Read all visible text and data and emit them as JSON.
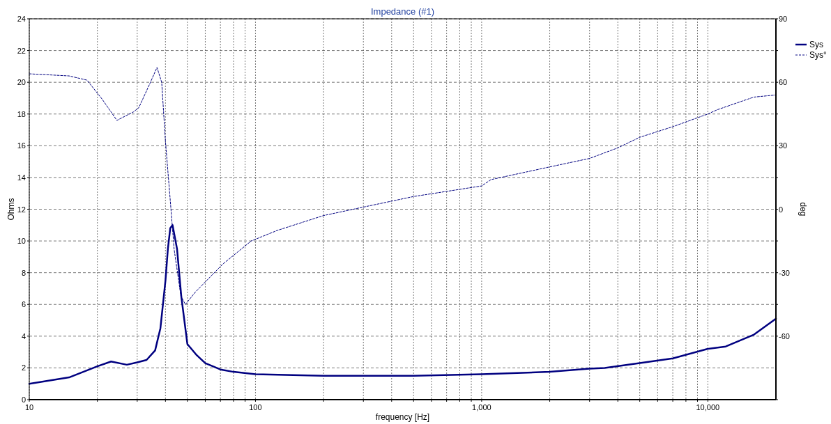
{
  "chart_data": {
    "type": "line",
    "title": "Impedance (#1)",
    "xlabel": "frequency [Hz]",
    "ylabel": "Ohms",
    "y2label": "deg",
    "log": "x",
    "grid": true,
    "legend": "top right",
    "xlim": [
      10,
      20000
    ],
    "xticks": [
      10,
      {
        "value": 20,
        "label": null
      },
      {
        "value": 30,
        "label": null
      },
      {
        "value": 40,
        "label": null
      },
      {
        "value": 50,
        "label": null
      },
      {
        "value": 60,
        "label": null
      },
      {
        "value": 70,
        "label": null
      },
      {
        "value": 80,
        "label": null
      },
      {
        "value": 90,
        "label": null
      },
      100,
      {
        "value": 200,
        "label": null
      },
      {
        "value": 300,
        "label": null
      },
      {
        "value": 400,
        "label": null
      },
      {
        "value": 500,
        "label": null
      },
      {
        "value": 600,
        "label": null
      },
      {
        "value": 700,
        "label": null
      },
      {
        "value": 800,
        "label": null
      },
      {
        "value": 900,
        "label": null
      },
      {
        "value": 1000,
        "label": "1,000"
      },
      {
        "value": 2000,
        "label": null
      },
      {
        "value": 3000,
        "label": null
      },
      {
        "value": 4000,
        "label": null
      },
      {
        "value": 5000,
        "label": null
      },
      {
        "value": 6000,
        "label": null
      },
      {
        "value": 7000,
        "label": null
      },
      {
        "value": 8000,
        "label": null
      },
      {
        "value": 9000,
        "label": null
      },
      {
        "value": 10000,
        "label": "10,000"
      }
    ],
    "ylim": [
      0,
      24
    ],
    "yticks": [
      0,
      2,
      4,
      6,
      8,
      10,
      12,
      14,
      16,
      18,
      20,
      22,
      24
    ],
    "y2lim": [
      -90,
      90
    ],
    "y2ticks": [
      {
        "value": -90,
        "label": null
      },
      -60,
      {
        "value": -45,
        "label": null
      },
      -30,
      {
        "value": -15,
        "label": null
      },
      0,
      {
        "value": 15,
        "label": null
      },
      30,
      {
        "value": 45,
        "label": null
      },
      60,
      {
        "value": 75,
        "label": null
      },
      90
    ],
    "series": [
      {
        "name": "Sys",
        "color": "#000080",
        "line_style": "solid",
        "x": [
          10,
          15,
          20,
          23,
          27,
          30,
          33,
          36,
          38,
          40,
          41,
          42,
          43,
          45,
          47,
          50,
          55,
          60,
          70,
          80,
          100,
          200,
          500,
          1000,
          2000,
          3000,
          3500,
          5000,
          7000,
          10000,
          12000,
          16000,
          20000
        ],
        "values": [
          1.0,
          1.4,
          2.1,
          2.4,
          2.2,
          2.35,
          2.5,
          3.1,
          4.5,
          7.5,
          9.5,
          10.8,
          11.0,
          9.5,
          6.5,
          3.5,
          2.8,
          2.3,
          1.9,
          1.75,
          1.6,
          1.5,
          1.5,
          1.6,
          1.75,
          1.95,
          2.0,
          2.3,
          2.6,
          3.2,
          3.35,
          4.1,
          5.1
        ]
      },
      {
        "name": "Sys°",
        "color": "#000080",
        "line_style": "dashed",
        "axis": "y2",
        "x": [
          10,
          15,
          18,
          21,
          24.4,
          28.9,
          30.5,
          34,
          36.7,
          38.5,
          40,
          41.8,
          43.7,
          46.8,
          49,
          54.4,
          71.6,
          95.8,
          125,
          200,
          300,
          500,
          1000,
          1100,
          2000,
          3000,
          4000,
          5000,
          7000,
          10000,
          11000,
          15000,
          16000,
          20000
        ],
        "values": [
          64,
          63,
          61,
          52,
          42,
          46,
          48,
          59,
          67,
          60,
          32,
          7,
          -19,
          -41,
          -45,
          -39,
          -26,
          -15,
          -10,
          -3,
          1,
          6,
          11,
          14,
          20,
          24,
          29,
          34,
          39,
          45,
          47,
          52,
          53,
          54
        ]
      }
    ]
  }
}
